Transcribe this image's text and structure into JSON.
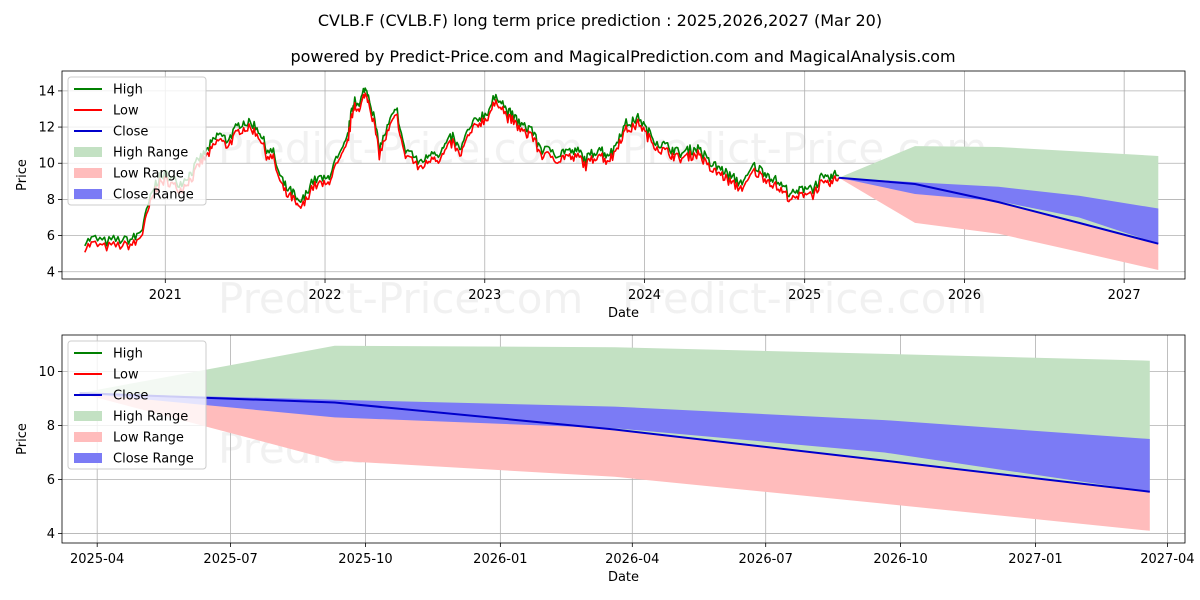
{
  "title": "CVLB.F (CVLB.F) long term price prediction : 2025,2026,2027 (Mar 20)",
  "subtitle": "powered by Predict-Price.com and MagicalPrediction.com and MagicalAnalysis.com",
  "watermark": "Predict-Price.com",
  "colors": {
    "high": "#008000",
    "low": "#ff0000",
    "close": "#0000cc",
    "high_range": "#c3e1c3",
    "low_range": "#ffbcbc",
    "close_range": "#7b7bf5"
  },
  "legend": {
    "placement": "upper-left",
    "items": [
      {
        "label": "High",
        "kind": "line",
        "color_key": "high"
      },
      {
        "label": "Low",
        "kind": "line",
        "color_key": "low"
      },
      {
        "label": "Close",
        "kind": "line",
        "color_key": "close"
      },
      {
        "label": "High Range",
        "kind": "patch",
        "color_key": "high_range"
      },
      {
        "label": "Low Range",
        "kind": "patch",
        "color_key": "low_range"
      },
      {
        "label": "Close Range",
        "kind": "patch",
        "color_key": "close_range"
      }
    ]
  },
  "chart_data": [
    {
      "type": "line",
      "panel": "long-term history and forecast",
      "xlabel": "Date",
      "ylabel": "Price",
      "xlim": [
        "2020-05-10",
        "2027-05-20"
      ],
      "ylim": [
        3.6,
        15.1
      ],
      "yticks": [
        4,
        6,
        8,
        10,
        12,
        14
      ],
      "xticks": [
        {
          "date": "2021-01-01",
          "label": "2021"
        },
        {
          "date": "2022-01-01",
          "label": "2022"
        },
        {
          "date": "2023-01-01",
          "label": "2023"
        },
        {
          "date": "2024-01-01",
          "label": "2024"
        },
        {
          "date": "2025-01-01",
          "label": "2025"
        },
        {
          "date": "2026-01-01",
          "label": "2026"
        },
        {
          "date": "2027-01-01",
          "label": "2027"
        }
      ],
      "grid": true,
      "history_close": [
        [
          "2020-07-01",
          5.4
        ],
        [
          "2020-07-20",
          5.6
        ],
        [
          "2020-08-15",
          5.4
        ],
        [
          "2020-09-10",
          5.5
        ],
        [
          "2020-10-05",
          5.5
        ],
        [
          "2020-10-25",
          5.6
        ],
        [
          "2020-11-10",
          6.2
        ],
        [
          "2020-11-25",
          7.6
        ],
        [
          "2020-12-10",
          8.6
        ],
        [
          "2020-12-22",
          9.0
        ],
        [
          "2021-01-05",
          9.1
        ],
        [
          "2021-01-20",
          8.8
        ],
        [
          "2021-02-05",
          8.6
        ],
        [
          "2021-02-20",
          9.0
        ],
        [
          "2021-03-05",
          9.3
        ],
        [
          "2021-03-20",
          10.0
        ],
        [
          "2021-04-05",
          10.4
        ],
        [
          "2021-04-20",
          10.9
        ],
        [
          "2021-05-05",
          11.4
        ],
        [
          "2021-05-20",
          11.0
        ],
        [
          "2021-06-05",
          11.4
        ],
        [
          "2021-06-20",
          11.9
        ],
        [
          "2021-07-05",
          12.0
        ],
        [
          "2021-07-20",
          11.9
        ],
        [
          "2021-08-05",
          11.5
        ],
        [
          "2021-08-20",
          10.5
        ],
        [
          "2021-09-05",
          10.3
        ],
        [
          "2021-09-20",
          9.0
        ],
        [
          "2021-10-05",
          8.3
        ],
        [
          "2021-10-20",
          8.1
        ],
        [
          "2021-11-01",
          7.5
        ],
        [
          "2021-11-15",
          7.8
        ],
        [
          "2021-12-01",
          8.7
        ],
        [
          "2021-12-20",
          8.9
        ],
        [
          "2022-01-05",
          8.8
        ],
        [
          "2022-01-20",
          9.6
        ],
        [
          "2022-02-05",
          10.2
        ],
        [
          "2022-02-20",
          11.0
        ],
        [
          "2022-03-01",
          12.3
        ],
        [
          "2022-03-10",
          13.4
        ],
        [
          "2022-03-20",
          12.8
        ],
        [
          "2022-04-01",
          13.9
        ],
        [
          "2022-04-10",
          13.6
        ],
        [
          "2022-04-25",
          12.0
        ],
        [
          "2022-05-05",
          10.5
        ],
        [
          "2022-05-20",
          11.5
        ],
        [
          "2022-06-05",
          12.4
        ],
        [
          "2022-06-15",
          12.6
        ],
        [
          "2022-07-01",
          10.5
        ],
        [
          "2022-07-15",
          10.4
        ],
        [
          "2022-08-01",
          9.8
        ],
        [
          "2022-08-20",
          10.0
        ],
        [
          "2022-09-05",
          10.5
        ],
        [
          "2022-09-20",
          10.2
        ],
        [
          "2022-10-05",
          10.8
        ],
        [
          "2022-10-20",
          11.2
        ],
        [
          "2022-11-05",
          10.4
        ],
        [
          "2022-11-20",
          11.3
        ],
        [
          "2022-12-05",
          11.9
        ],
        [
          "2022-12-20",
          12.3
        ],
        [
          "2023-01-05",
          12.5
        ],
        [
          "2023-01-20",
          13.2
        ],
        [
          "2023-02-05",
          13.4
        ],
        [
          "2023-02-20",
          12.6
        ],
        [
          "2023-03-05",
          12.4
        ],
        [
          "2023-03-20",
          12.0
        ],
        [
          "2023-04-05",
          11.6
        ],
        [
          "2023-04-15",
          11.8
        ],
        [
          "2023-05-01",
          10.9
        ],
        [
          "2023-05-15",
          10.4
        ],
        [
          "2023-06-01",
          10.5
        ],
        [
          "2023-06-20",
          10.2
        ],
        [
          "2023-07-05",
          10.5
        ],
        [
          "2023-07-20",
          10.3
        ],
        [
          "2023-08-05",
          10.4
        ],
        [
          "2023-08-20",
          9.9
        ],
        [
          "2023-09-05",
          10.3
        ],
        [
          "2023-09-20",
          10.6
        ],
        [
          "2023-10-05",
          10.2
        ],
        [
          "2023-10-20",
          10.4
        ],
        [
          "2023-11-05",
          11.3
        ],
        [
          "2023-11-20",
          11.9
        ],
        [
          "2023-12-05",
          12.0
        ],
        [
          "2023-12-20",
          12.3
        ],
        [
          "2024-01-05",
          11.6
        ],
        [
          "2024-01-20",
          11.2
        ],
        [
          "2024-02-05",
          10.8
        ],
        [
          "2024-02-20",
          10.7
        ],
        [
          "2024-03-05",
          10.5
        ],
        [
          "2024-03-20",
          10.3
        ],
        [
          "2024-04-05",
          10.4
        ],
        [
          "2024-04-20",
          10.5
        ],
        [
          "2024-05-05",
          10.6
        ],
        [
          "2024-05-20",
          10.0
        ],
        [
          "2024-06-05",
          9.6
        ],
        [
          "2024-06-20",
          9.5
        ],
        [
          "2024-07-05",
          9.2
        ],
        [
          "2024-07-20",
          8.9
        ],
        [
          "2024-08-05",
          8.7
        ],
        [
          "2024-08-20",
          8.8
        ],
        [
          "2024-09-05",
          9.6
        ],
        [
          "2024-09-20",
          9.4
        ],
        [
          "2024-10-05",
          9.2
        ],
        [
          "2024-10-20",
          8.9
        ],
        [
          "2024-11-05",
          8.6
        ],
        [
          "2024-11-20",
          8.3
        ],
        [
          "2024-12-05",
          8.0
        ],
        [
          "2024-12-20",
          8.2
        ],
        [
          "2025-01-05",
          8.5
        ],
        [
          "2025-01-20",
          8.3
        ],
        [
          "2025-02-05",
          8.9
        ],
        [
          "2025-02-20",
          8.8
        ],
        [
          "2025-03-05",
          9.0
        ],
        [
          "2025-03-20",
          9.2
        ]
      ],
      "forecast": {
        "dates": [
          "2025-03-20",
          "2025-09-10",
          "2026-03-20",
          "2026-09-20",
          "2027-03-20"
        ],
        "close": [
          9.2,
          8.85,
          7.85,
          6.7,
          5.55
        ],
        "high_upper": [
          9.2,
          10.95,
          10.9,
          10.65,
          10.4
        ],
        "low_lower": [
          9.2,
          6.7,
          6.1,
          5.1,
          4.1
        ],
        "close_upper": [
          9.2,
          8.95,
          8.7,
          8.2,
          7.5
        ],
        "close_lower": [
          9.2,
          8.3,
          7.9,
          7.0,
          5.55
        ]
      }
    },
    {
      "type": "area",
      "panel": "forecast zoom",
      "xlabel": "Date",
      "ylabel": "Price",
      "xlim": [
        "2025-03-08",
        "2027-04-13"
      ],
      "ylim": [
        3.65,
        11.35
      ],
      "yticks": [
        4,
        6,
        8,
        10
      ],
      "xticks": [
        {
          "date": "2025-04-01",
          "label": "2025-04"
        },
        {
          "date": "2025-07-01",
          "label": "2025-07"
        },
        {
          "date": "2025-10-01",
          "label": "2025-10"
        },
        {
          "date": "2026-01-01",
          "label": "2026-01"
        },
        {
          "date": "2026-04-01",
          "label": "2026-04"
        },
        {
          "date": "2026-07-01",
          "label": "2026-07"
        },
        {
          "date": "2026-10-01",
          "label": "2026-10"
        },
        {
          "date": "2027-01-01",
          "label": "2027-01"
        },
        {
          "date": "2027-04-01",
          "label": "2027-04"
        }
      ],
      "grid": true,
      "forecast": {
        "dates": [
          "2025-03-20",
          "2025-09-10",
          "2026-03-20",
          "2026-09-20",
          "2027-03-20"
        ],
        "close": [
          9.2,
          8.85,
          7.85,
          6.7,
          5.55
        ],
        "high_upper": [
          9.2,
          10.95,
          10.9,
          10.65,
          10.4
        ],
        "low_lower": [
          9.2,
          6.7,
          6.1,
          5.1,
          4.1
        ],
        "close_upper": [
          9.2,
          8.95,
          8.7,
          8.2,
          7.5
        ],
        "close_lower": [
          9.2,
          8.3,
          7.9,
          7.0,
          5.55
        ]
      }
    }
  ]
}
